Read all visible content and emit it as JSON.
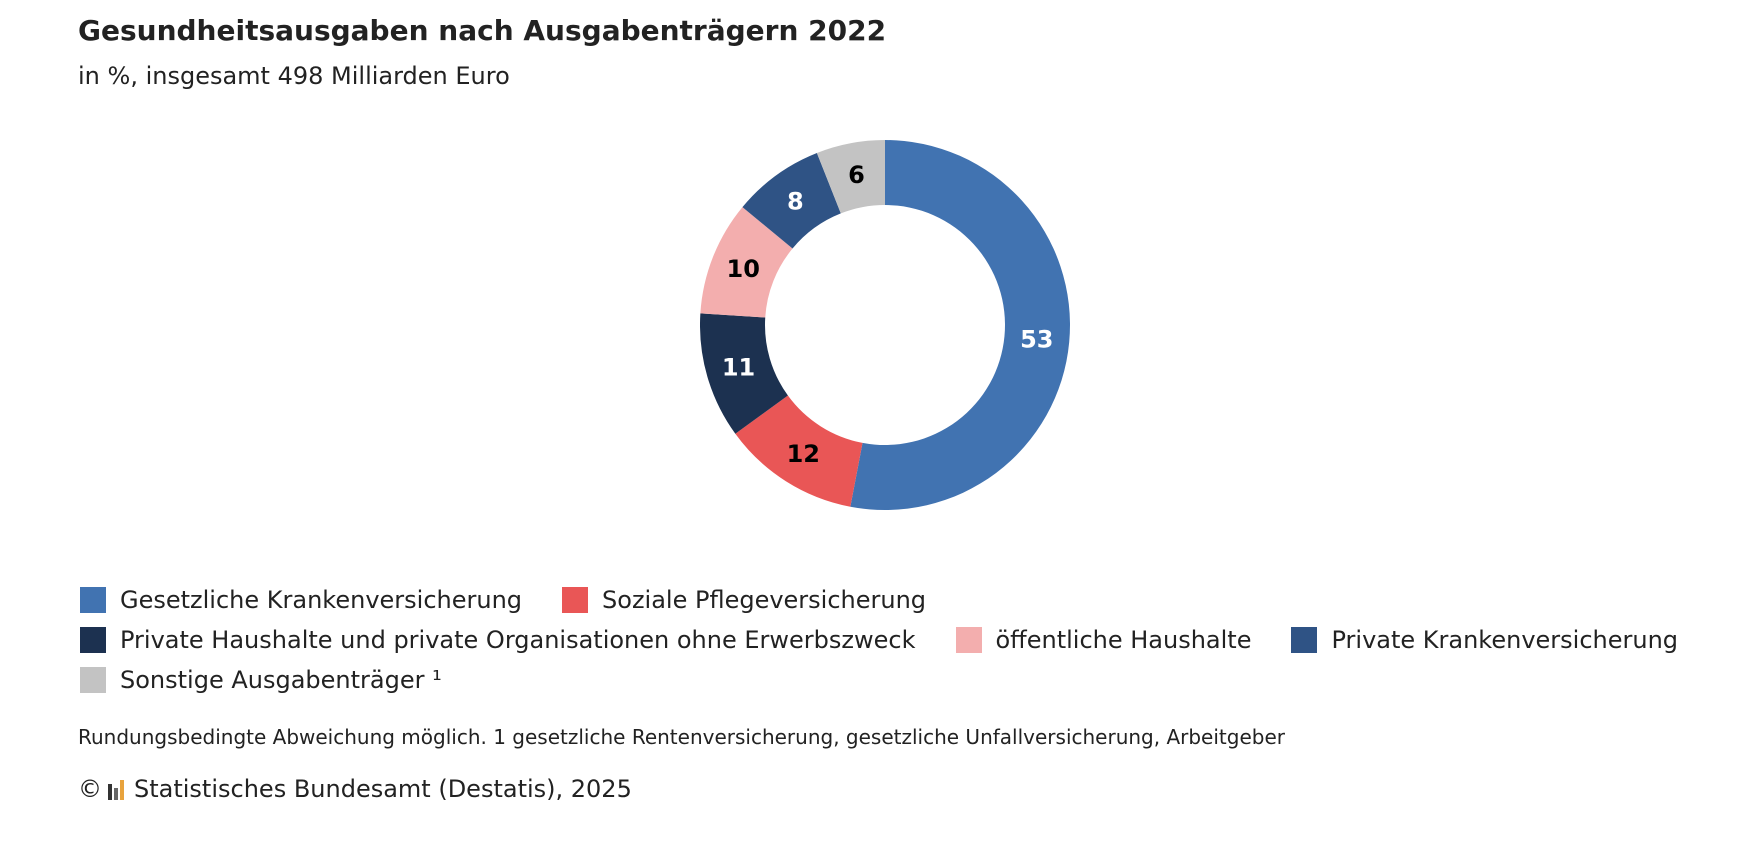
{
  "header": {
    "title": "Gesundheitsausgaben nach Ausgabenträgern 2022",
    "subtitle": "in %, insgesamt 498 Milliarden Euro"
  },
  "chart_data": {
    "type": "pie",
    "variant": "donut",
    "title": "Gesundheitsausgaben nach Ausgabenträgern 2022",
    "subtitle": "in %, insgesamt 498 Milliarden Euro",
    "unit": "%",
    "legend_position": "bottom",
    "slices": [
      {
        "label": "Gesetzliche Krankenversicherung",
        "value": 53,
        "color": "#4173b1",
        "label_color": "#ffffff"
      },
      {
        "label": "Soziale Pflegeversicherung",
        "value": 12,
        "color": "#e95656",
        "label_color": "#000000"
      },
      {
        "label": "Private Haushalte und private Organisationen ohne Erwerbszweck",
        "value": 11,
        "color": "#1c3150",
        "label_color": "#ffffff"
      },
      {
        "label": "öffentliche Haushalte",
        "value": 10,
        "color": "#f3aeae",
        "label_color": "#000000"
      },
      {
        "label": "Private Krankenversicherung",
        "value": 8,
        "color": "#2f5385",
        "label_color": "#ffffff"
      },
      {
        "label": "Sonstige Ausgabenträger ¹",
        "value": 6,
        "color": "#c3c3c3",
        "label_color": "#000000"
      }
    ]
  },
  "legend": {
    "rows": [
      [
        0,
        1
      ],
      [
        2,
        3,
        4
      ],
      [
        5
      ]
    ]
  },
  "footer": {
    "note": "Rundungsbedingte Abweichung möglich. 1 gesetzliche Rentenversicherung, gesetzliche Unfallversicherung, Arbeitgeber",
    "copyright": "©",
    "source": "Statistisches Bundesamt (Destatis), 2025"
  },
  "colors": {
    "logo_bars": [
      "#333333",
      "#666666",
      "#e8a33d"
    ]
  }
}
